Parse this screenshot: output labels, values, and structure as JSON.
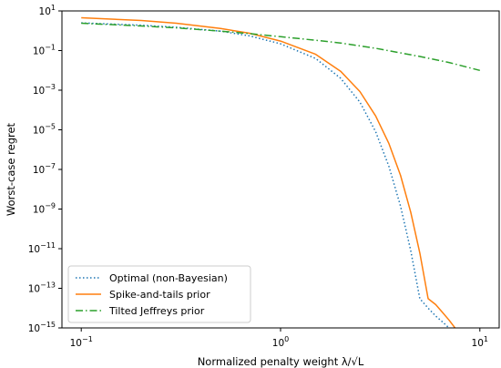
{
  "chart_data": {
    "type": "line",
    "title": "",
    "xlabel": "Normalized penalty weight λ/√L",
    "ylabel": "Worst-case regret",
    "x_scale": "log",
    "y_scale": "log",
    "xlim": [
      0.08,
      12.5
    ],
    "ylim": [
      1e-15,
      10
    ],
    "x_ticks": [
      {
        "value": 0.1,
        "label_base": "10",
        "label_exp": "−1"
      },
      {
        "value": 1,
        "label_base": "10",
        "label_exp": "0"
      },
      {
        "value": 10,
        "label_base": "10",
        "label_exp": "1"
      }
    ],
    "y_ticks": [
      {
        "value": 10,
        "label_base": "10",
        "label_exp": "1"
      },
      {
        "value": 0.1,
        "label_base": "10",
        "label_exp": "−1"
      },
      {
        "value": 0.001,
        "label_base": "10",
        "label_exp": "−3"
      },
      {
        "value": 1e-05,
        "label_base": "10",
        "label_exp": "−5"
      },
      {
        "value": 1e-07,
        "label_base": "10",
        "label_exp": "−7"
      },
      {
        "value": 1e-09,
        "label_base": "10",
        "label_exp": "−9"
      },
      {
        "value": 1e-11,
        "label_base": "10",
        "label_exp": "−11"
      },
      {
        "value": 1e-13,
        "label_base": "10",
        "label_exp": "−13"
      },
      {
        "value": 1e-15,
        "label_base": "10",
        "label_exp": "−15"
      }
    ],
    "grid": false,
    "legend_position": "lower-left",
    "series": [
      {
        "name": "Optimal (non-Bayesian)",
        "color": "#1f77b4",
        "style": "dotted",
        "x": [
          0.1,
          0.2,
          0.3,
          0.5,
          0.7,
          1.0,
          1.5,
          2.0,
          2.5,
          3.0,
          3.5,
          4.0,
          4.5,
          5.0,
          5.5,
          6.0,
          6.5,
          7.0
        ],
        "y": [
          2.5,
          1.9,
          1.5,
          0.95,
          0.55,
          0.22,
          0.04,
          0.004,
          0.00025,
          8e-06,
          1.4e-07,
          1.4e-09,
          8e-12,
          3e-14,
          1e-14,
          4e-15,
          2e-15,
          1e-15
        ]
      },
      {
        "name": "Spike-and-tails prior",
        "color": "#ff7f0e",
        "style": "solid",
        "x": [
          0.1,
          0.2,
          0.3,
          0.5,
          0.7,
          1.0,
          1.5,
          2.0,
          2.5,
          3.0,
          3.5,
          4.0,
          4.5,
          5.0,
          5.5,
          6.0,
          6.5,
          7.0,
          7.5
        ],
        "y": [
          4.5,
          3.3,
          2.4,
          1.3,
          0.75,
          0.3,
          0.065,
          0.009,
          0.00085,
          5e-05,
          2e-06,
          5e-08,
          7e-10,
          6e-12,
          3e-14,
          1.5e-14,
          6e-15,
          2.5e-15,
          1e-15
        ]
      },
      {
        "name": "Tilted Jeffreys prior",
        "color": "#2ca02c",
        "style": "dashdot",
        "x": [
          0.1,
          0.2,
          0.3,
          0.5,
          0.7,
          1.0,
          1.5,
          2.0,
          3.0,
          5.0,
          7.0,
          10.0
        ],
        "y": [
          2.4,
          1.75,
          1.4,
          0.95,
          0.72,
          0.5,
          0.33,
          0.24,
          0.13,
          0.05,
          0.025,
          0.01
        ]
      }
    ]
  }
}
